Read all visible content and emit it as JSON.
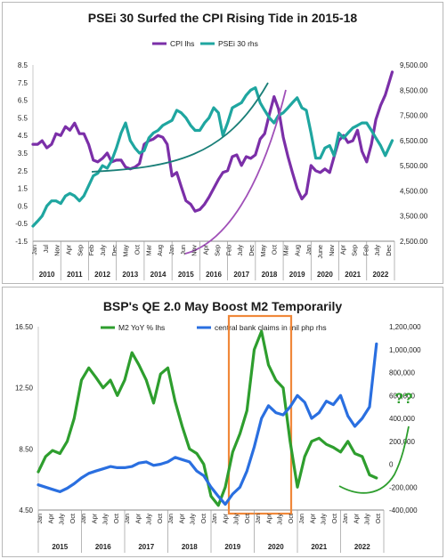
{
  "chart_data": [
    {
      "type": "line",
      "title": "PSEi 30 Surfed the CPI Rising Tide in 2015-18",
      "legend_placement": "top",
      "series": [
        {
          "name": "CPI lhs",
          "axis": "left",
          "color": "#7b2fa8",
          "x": [
            2010.0,
            2010.17,
            2010.33,
            2010.5,
            2010.67,
            2010.83,
            2011.0,
            2011.17,
            2011.33,
            2011.5,
            2011.67,
            2011.83,
            2012.0,
            2012.17,
            2012.33,
            2012.5,
            2012.67,
            2012.83,
            2013.0,
            2013.17,
            2013.33,
            2013.5,
            2013.67,
            2013.83,
            2014.0,
            2014.17,
            2014.33,
            2014.5,
            2014.67,
            2014.83,
            2015.0,
            2015.17,
            2015.33,
            2015.5,
            2015.67,
            2015.83,
            2016.0,
            2016.17,
            2016.33,
            2016.5,
            2016.67,
            2016.83,
            2017.0,
            2017.17,
            2017.33,
            2017.5,
            2017.67,
            2017.83,
            2018.0,
            2018.17,
            2018.33,
            2018.5,
            2018.67,
            2018.83,
            2019.0,
            2019.17,
            2019.33,
            2019.5,
            2019.67,
            2019.83,
            2020.0,
            2020.17,
            2020.33,
            2020.5,
            2020.67,
            2020.83,
            2021.0,
            2021.17,
            2021.33,
            2021.5,
            2021.67,
            2021.83,
            2022.0,
            2022.17,
            2022.33,
            2022.5,
            2022.67,
            2022.92
          ],
          "values": [
            4.0,
            4.0,
            4.2,
            3.8,
            4.0,
            4.6,
            4.5,
            5.0,
            4.8,
            5.2,
            4.6,
            4.6,
            4.0,
            3.1,
            3.0,
            3.2,
            3.5,
            3.0,
            3.1,
            3.1,
            2.7,
            2.6,
            2.7,
            2.9,
            4.0,
            4.2,
            4.3,
            4.5,
            4.4,
            4.0,
            2.2,
            2.4,
            1.6,
            0.8,
            0.6,
            0.2,
            0.3,
            0.6,
            1.0,
            1.5,
            2.0,
            2.4,
            2.5,
            3.3,
            3.4,
            2.8,
            3.3,
            3.2,
            3.4,
            4.3,
            4.6,
            5.7,
            6.7,
            6.0,
            4.4,
            3.3,
            2.4,
            1.5,
            0.9,
            1.2,
            2.8,
            2.5,
            2.4,
            2.6,
            2.4,
            3.3,
            4.2,
            4.5,
            4.1,
            4.2,
            4.8,
            3.6,
            3.0,
            4.0,
            5.4,
            6.2,
            6.8,
            8.1
          ]
        },
        {
          "name": "PSEi 30 rhs",
          "axis": "right",
          "color": "#1fa6a0",
          "x": [
            2010.0,
            2010.17,
            2010.33,
            2010.5,
            2010.67,
            2010.83,
            2011.0,
            2011.17,
            2011.33,
            2011.5,
            2011.67,
            2011.83,
            2012.0,
            2012.17,
            2012.33,
            2012.5,
            2012.67,
            2012.83,
            2013.0,
            2013.17,
            2013.33,
            2013.5,
            2013.67,
            2013.83,
            2014.0,
            2014.17,
            2014.33,
            2014.5,
            2014.67,
            2014.83,
            2015.0,
            2015.17,
            2015.33,
            2015.5,
            2015.67,
            2015.83,
            2016.0,
            2016.17,
            2016.33,
            2016.5,
            2016.67,
            2016.83,
            2017.0,
            2017.17,
            2017.33,
            2017.5,
            2017.67,
            2017.83,
            2018.0,
            2018.17,
            2018.33,
            2018.5,
            2018.67,
            2018.83,
            2019.0,
            2019.17,
            2019.33,
            2019.5,
            2019.67,
            2019.83,
            2020.0,
            2020.17,
            2020.33,
            2020.5,
            2020.67,
            2020.83,
            2021.0,
            2021.17,
            2021.33,
            2021.5,
            2021.67,
            2021.83,
            2022.0,
            2022.17,
            2022.33,
            2022.5,
            2022.67,
            2022.92
          ],
          "values": [
            3100,
            3300,
            3500,
            3900,
            4100,
            4100,
            4000,
            4300,
            4400,
            4300,
            4100,
            4300,
            4700,
            5100,
            5200,
            5500,
            5400,
            5700,
            6200,
            6800,
            7200,
            6500,
            6200,
            6000,
            6100,
            6600,
            6800,
            6900,
            7100,
            7200,
            7300,
            7700,
            7600,
            7400,
            7100,
            6900,
            6900,
            7200,
            7400,
            7800,
            7600,
            6700,
            7200,
            7800,
            7900,
            8000,
            8300,
            8500,
            8600,
            8000,
            7700,
            7400,
            7200,
            7500,
            7600,
            7800,
            8000,
            8200,
            7800,
            7700,
            6800,
            5800,
            5800,
            6200,
            6300,
            5900,
            6800,
            6600,
            6800,
            7000,
            7100,
            7200,
            7200,
            6900,
            6600,
            6300,
            5900,
            6500
          ]
        }
      ],
      "ylim_left": [
        -1.5,
        8.5
      ],
      "ylim_right": [
        2500,
        9500
      ],
      "yticks_left": [
        "8.5",
        "7.5",
        "6.5",
        "5.5",
        "4.5",
        "3.5",
        "2.5",
        "1.5",
        "0.5",
        "-0.5",
        "-1.5"
      ],
      "yticks_right": [
        "9,500.00",
        "8,500.00",
        "7,500.00",
        "6,500.00",
        "5,500.00",
        "4,500.00",
        "3,500.00",
        "2,500.00"
      ],
      "month_labels": [
        "Jan",
        "Jul",
        "Nov",
        "Apr",
        "Sep",
        "Feb",
        "July",
        "Dec",
        "May",
        "Oct",
        "Mar",
        "Aug",
        "Jan",
        "Jun",
        "Nov",
        "Apr",
        "Sep",
        "Feb",
        "July",
        "Dec",
        "May",
        "Oct",
        "Mar",
        "Aug",
        "Jan",
        "June",
        "Nov",
        "Apr",
        "Sep",
        "Feb",
        "July",
        "Dec"
      ],
      "year_labels": [
        "2010",
        "2011",
        "2012",
        "2013",
        "2014",
        "2015",
        "2016",
        "2017",
        "2018",
        "2019",
        "2020",
        "2021",
        "2022"
      ]
    },
    {
      "type": "line",
      "title": "BSP's QE 2.0 May Boost M2 Temporarily",
      "legend_placement": "top",
      "series": [
        {
          "name": "M2 YoY % lhs",
          "axis": "left",
          "color": "#2e9e2e",
          "x": [
            2015.0,
            2015.17,
            2015.33,
            2015.5,
            2015.67,
            2015.83,
            2016.0,
            2016.17,
            2016.33,
            2016.5,
            2016.67,
            2016.83,
            2017.0,
            2017.17,
            2017.33,
            2017.5,
            2017.67,
            2017.83,
            2018.0,
            2018.17,
            2018.33,
            2018.5,
            2018.67,
            2018.83,
            2019.0,
            2019.17,
            2019.33,
            2019.5,
            2019.67,
            2019.83,
            2020.0,
            2020.17,
            2020.33,
            2020.5,
            2020.67,
            2020.83,
            2021.0,
            2021.17,
            2021.33,
            2021.5,
            2021.67,
            2021.83,
            2022.0,
            2022.17,
            2022.33,
            2022.5,
            2022.67,
            2022.83
          ],
          "values": [
            7.0,
            8.0,
            8.4,
            8.2,
            9.0,
            10.5,
            13.0,
            13.8,
            13.2,
            12.5,
            13.0,
            12.0,
            13.0,
            14.8,
            14.0,
            13.0,
            11.5,
            13.4,
            13.8,
            11.6,
            10.0,
            8.5,
            8.2,
            7.5,
            5.4,
            4.8,
            6.0,
            8.3,
            9.5,
            11.0,
            15.0,
            16.2,
            14.0,
            13.0,
            12.5,
            9.0,
            6.0,
            8.0,
            9.0,
            9.2,
            8.8,
            8.6,
            8.3,
            9.0,
            8.2,
            8.0,
            6.8,
            6.6
          ]
        },
        {
          "name": "central bank claims in mil php rhs",
          "axis": "right",
          "color": "#2a6fe0",
          "x": [
            2015.0,
            2015.17,
            2015.33,
            2015.5,
            2015.67,
            2015.83,
            2016.0,
            2016.17,
            2016.33,
            2016.5,
            2016.67,
            2016.83,
            2017.0,
            2017.17,
            2017.33,
            2017.5,
            2017.67,
            2017.83,
            2018.0,
            2018.17,
            2018.33,
            2018.5,
            2018.67,
            2018.83,
            2019.0,
            2019.17,
            2019.33,
            2019.5,
            2019.67,
            2019.83,
            2020.0,
            2020.17,
            2020.33,
            2020.5,
            2020.67,
            2020.83,
            2021.0,
            2021.17,
            2021.33,
            2021.5,
            2021.67,
            2021.83,
            2022.0,
            2022.17,
            2022.33,
            2022.5,
            2022.67,
            2022.83
          ],
          "values": [
            -180000,
            -200000,
            -220000,
            -240000,
            -210000,
            -170000,
            -120000,
            -80000,
            -60000,
            -40000,
            -20000,
            -30000,
            -30000,
            -20000,
            10000,
            20000,
            -10000,
            0,
            20000,
            60000,
            40000,
            20000,
            -60000,
            -100000,
            -200000,
            -280000,
            -350000,
            -260000,
            -200000,
            -60000,
            150000,
            400000,
            510000,
            450000,
            430000,
            500000,
            600000,
            540000,
            400000,
            450000,
            550000,
            520000,
            600000,
            420000,
            330000,
            400000,
            500000,
            1050000
          ]
        }
      ],
      "ylim_left": [
        4.5,
        16.5
      ],
      "ylim_right": [
        -400000,
        1200000
      ],
      "yticks_left": [
        "16.50",
        "12.50",
        "8.50",
        "4.50"
      ],
      "yticks_right": [
        "1,200,000",
        "1,000,000",
        "800,000",
        "600,000",
        "400,000",
        "200,000",
        "0",
        "-200,000",
        "-400,000"
      ],
      "month_labels": [
        "Jan",
        "Apr",
        "July",
        "Oct",
        "Jan",
        "Apr",
        "July",
        "Oct",
        "Jan",
        "Apr",
        "July",
        "Oct",
        "Jan",
        "Apr",
        "July",
        "Oct",
        "Jan",
        "Apr",
        "July",
        "Oct",
        "Jan",
        "Apr",
        "July",
        "Oct",
        "Jan",
        "Apr",
        "July",
        "Oct",
        "Jan",
        "Apr",
        "July",
        "Oct"
      ],
      "year_labels": [
        "2015",
        "2016",
        "2017",
        "2018",
        "2019",
        "2020",
        "2021",
        "2022"
      ],
      "annotation": "??"
    }
  ]
}
